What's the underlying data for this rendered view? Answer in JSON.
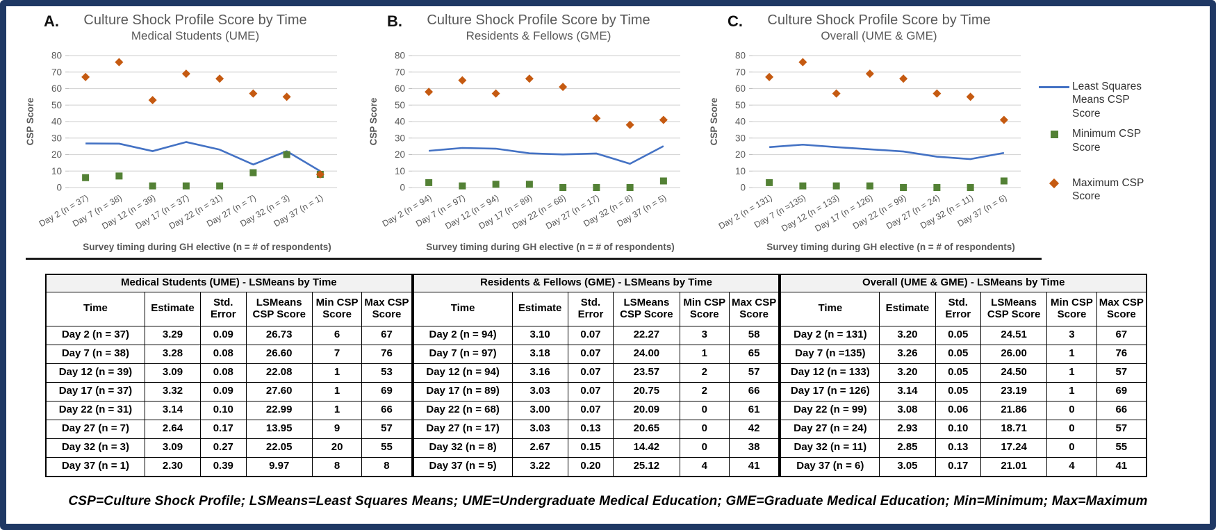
{
  "figure": {
    "footnote": "CSP=Culture Shock Profile; LSMeans=Least Squares Means; UME=Undergraduate Medical Education; GME=Graduate Medical Education; Min=Minimum; Max=Maximum",
    "border_color": "#1f3864"
  },
  "legend": {
    "items": [
      {
        "id": "lsmeans",
        "label": "Least Squares Means CSP Score",
        "marker": "line",
        "color": "#4472c4"
      },
      {
        "id": "minimum",
        "label": "Minimum CSP Score",
        "marker": "square",
        "color": "#538135"
      },
      {
        "id": "maximum",
        "label": "Maximum CSP Score",
        "marker": "diamond",
        "color": "#c55a11"
      }
    ]
  },
  "chart_data": [
    {
      "type": "line",
      "panel_label": "A.",
      "title": "Culture Shock Profile Score by Time",
      "subtitle": "Medical Students (UME)",
      "ylabel": "CSP Score",
      "xlabel": "Survey timing during GH elective (n = # of respondents)",
      "ylim": [
        0,
        80
      ],
      "ytick_step": 10,
      "grid": true,
      "legend_position": "right",
      "categories": [
        "Day 2 (n = 37)",
        "Day 7 (n = 38)",
        "Day 12 (n = 39)",
        "Day 17 (n = 37)",
        "Day 22 (n = 31)",
        "Day 27 (n = 7)",
        "Day 32 (n = 3)",
        "Day 37 (n = 1)"
      ],
      "series": [
        {
          "name": "Least Squares Means CSP Score",
          "style": "line",
          "color": "#4472c4",
          "values": [
            26.73,
            26.6,
            22.08,
            27.6,
            22.99,
            13.95,
            22.05,
            9.97
          ]
        },
        {
          "name": "Minimum CSP Score",
          "style": "square",
          "color": "#538135",
          "values": [
            6,
            7,
            1,
            1,
            1,
            9,
            20,
            8
          ]
        },
        {
          "name": "Maximum CSP Score",
          "style": "diamond",
          "color": "#c55a11",
          "values": [
            67,
            76,
            53,
            69,
            66,
            57,
            55,
            8
          ]
        }
      ]
    },
    {
      "type": "line",
      "panel_label": "B.",
      "title": "Culture Shock Profile Score by Time",
      "subtitle": "Residents & Fellows (GME)",
      "ylabel": "CSP Score",
      "xlabel": "Survey timing during GH elective (n = # of respondents)",
      "ylim": [
        0,
        80
      ],
      "ytick_step": 10,
      "grid": true,
      "legend_position": "right",
      "categories": [
        "Day 2 (n = 94)",
        "Day 7 (n = 97)",
        "Day 12 (n = 94)",
        "Day 17 (n = 89)",
        "Day 22 (n = 68)",
        "Day 27 (n = 17)",
        "Day 32 (n = 8)",
        "Day 37 (n = 5)"
      ],
      "series": [
        {
          "name": "Least Squares Means CSP Score",
          "style": "line",
          "color": "#4472c4",
          "values": [
            22.27,
            24.0,
            23.57,
            20.75,
            20.09,
            20.65,
            14.42,
            25.12
          ]
        },
        {
          "name": "Minimum CSP Score",
          "style": "square",
          "color": "#538135",
          "values": [
            3,
            1,
            2,
            2,
            0,
            0,
            0,
            4
          ]
        },
        {
          "name": "Maximum CSP Score",
          "style": "diamond",
          "color": "#c55a11",
          "values": [
            58,
            65,
            57,
            66,
            61,
            42,
            38,
            41
          ]
        }
      ]
    },
    {
      "type": "line",
      "panel_label": "C.",
      "title": "Culture Shock Profile Score by Time",
      "subtitle": "Overall (UME & GME)",
      "ylabel": "CSP Score",
      "xlabel": "Survey timing during GH elective (n = # of respondents)",
      "ylim": [
        0,
        80
      ],
      "ytick_step": 10,
      "grid": true,
      "legend_position": "right",
      "categories": [
        "Day 2 (n = 131)",
        "Day 7 (n =135)",
        "Day 12 (n = 133)",
        "Day 17 (n = 126)",
        "Day 22 (n = 99)",
        "Day 27 (n = 24)",
        "Day 32 (n = 11)",
        "Day 37 (n = 6)"
      ],
      "series": [
        {
          "name": "Least Squares Means CSP Score",
          "style": "line",
          "color": "#4472c4",
          "values": [
            24.51,
            26.0,
            24.5,
            23.19,
            21.86,
            18.71,
            17.24,
            21.01
          ]
        },
        {
          "name": "Minimum CSP Score",
          "style": "square",
          "color": "#538135",
          "values": [
            3,
            1,
            1,
            1,
            0,
            0,
            0,
            4
          ]
        },
        {
          "name": "Maximum CSP Score",
          "style": "diamond",
          "color": "#c55a11",
          "values": [
            67,
            76,
            57,
            69,
            66,
            57,
            55,
            41
          ]
        }
      ]
    }
  ],
  "tables": [
    {
      "title": "Medical Students (UME) - LSMeans by Time",
      "headers": [
        "Time",
        "Estimate",
        "Std. Error",
        "LSMeans CSP Score",
        "Min CSP Score",
        "Max CSP Score"
      ],
      "rows": [
        [
          "Day 2 (n = 37)",
          "3.29",
          "0.09",
          "26.73",
          "6",
          "67"
        ],
        [
          "Day 7 (n = 38)",
          "3.28",
          "0.08",
          "26.60",
          "7",
          "76"
        ],
        [
          "Day 12 (n = 39)",
          "3.09",
          "0.08",
          "22.08",
          "1",
          "53"
        ],
        [
          "Day 17 (n = 37)",
          "3.32",
          "0.09",
          "27.60",
          "1",
          "69"
        ],
        [
          "Day 22 (n = 31)",
          "3.14",
          "0.10",
          "22.99",
          "1",
          "66"
        ],
        [
          "Day 27 (n = 7)",
          "2.64",
          "0.17",
          "13.95",
          "9",
          "57"
        ],
        [
          "Day 32 (n = 3)",
          "3.09",
          "0.27",
          "22.05",
          "20",
          "55"
        ],
        [
          "Day 37 (n = 1)",
          "2.30",
          "0.39",
          "9.97",
          "8",
          "8"
        ]
      ]
    },
    {
      "title": "Residents & Fellows (GME) - LSMeans by Time",
      "headers": [
        "Time",
        "Estimate",
        "Std. Error",
        "LSMeans CSP Score",
        "Min CSP Score",
        "Max CSP Score"
      ],
      "rows": [
        [
          "Day 2 (n = 94)",
          "3.10",
          "0.07",
          "22.27",
          "3",
          "58"
        ],
        [
          "Day 7 (n = 97)",
          "3.18",
          "0.07",
          "24.00",
          "1",
          "65"
        ],
        [
          "Day 12 (n = 94)",
          "3.16",
          "0.07",
          "23.57",
          "2",
          "57"
        ],
        [
          "Day 17 (n = 89)",
          "3.03",
          "0.07",
          "20.75",
          "2",
          "66"
        ],
        [
          "Day 22 (n = 68)",
          "3.00",
          "0.07",
          "20.09",
          "0",
          "61"
        ],
        [
          "Day 27 (n = 17)",
          "3.03",
          "0.13",
          "20.65",
          "0",
          "42"
        ],
        [
          "Day 32 (n = 8)",
          "2.67",
          "0.15",
          "14.42",
          "0",
          "38"
        ],
        [
          "Day 37 (n = 5)",
          "3.22",
          "0.20",
          "25.12",
          "4",
          "41"
        ]
      ]
    },
    {
      "title": "Overall (UME & GME) - LSMeans by Time",
      "headers": [
        "Time",
        "Estimate",
        "Std. Error",
        "LSMeans CSP Score",
        "Min CSP Score",
        "Max CSP Score"
      ],
      "rows": [
        [
          "Day 2 (n = 131)",
          "3.20",
          "0.05",
          "24.51",
          "3",
          "67"
        ],
        [
          "Day 7 (n =135)",
          "3.26",
          "0.05",
          "26.00",
          "1",
          "76"
        ],
        [
          "Day 12 (n = 133)",
          "3.20",
          "0.05",
          "24.50",
          "1",
          "57"
        ],
        [
          "Day 17 (n = 126)",
          "3.14",
          "0.05",
          "23.19",
          "1",
          "69"
        ],
        [
          "Day 22 (n = 99)",
          "3.08",
          "0.06",
          "21.86",
          "0",
          "66"
        ],
        [
          "Day 27 (n = 24)",
          "2.93",
          "0.10",
          "18.71",
          "0",
          "57"
        ],
        [
          "Day 32 (n = 11)",
          "2.85",
          "0.13",
          "17.24",
          "0",
          "55"
        ],
        [
          "Day 37 (n = 6)",
          "3.05",
          "0.17",
          "21.01",
          "4",
          "41"
        ]
      ]
    }
  ]
}
